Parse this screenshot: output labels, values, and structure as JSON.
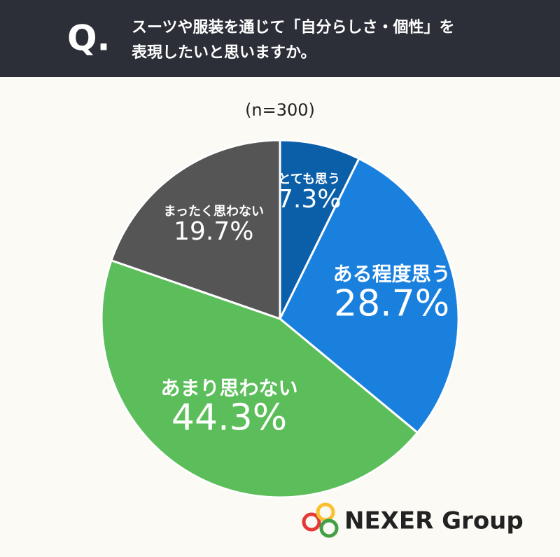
{
  "q_label": "Q.",
  "logo": "NEXER Group",
  "chart_data": {
    "type": "pie",
    "title": [
      "スーツや服装を通じて「自分らしさ・個性」を",
      "表現したいと思いますか。"
    ],
    "subtitle": "(n=300)",
    "categories": [
      "とても思う",
      "ある程度思う",
      "あまり思わない",
      "まったく思わない"
    ],
    "values": [
      7.3,
      28.7,
      44.3,
      19.7
    ],
    "value_labels": [
      "7.3%",
      "28.7%",
      "44.3%",
      "19.7%"
    ],
    "colors": [
      "#0b5ea8",
      "#1a80de",
      "#5cbe5a",
      "#555555"
    ]
  }
}
